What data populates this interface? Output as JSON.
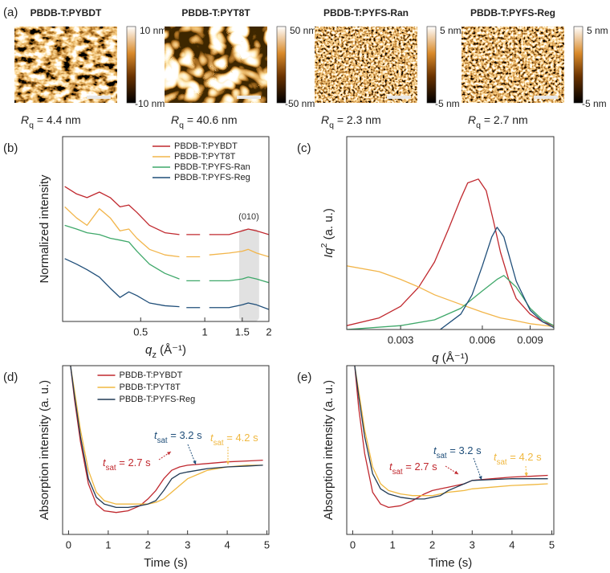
{
  "panel_a": {
    "panel_label": "(a)",
    "images": [
      {
        "title": "PBDB-T:PYBDT",
        "scale_max": "10 nm",
        "scale_min": "-10 nm",
        "rq": {
          "symbol": "R",
          "subscript": "q",
          "text": " = 4.4 nm"
        }
      },
      {
        "title": "PBDB-T:PYT8T",
        "scale_max": "50 nm",
        "scale_min": "-50 nm",
        "rq": {
          "symbol": "R",
          "subscript": "q",
          "text": " = 40.6 nm"
        }
      },
      {
        "title": "PBDB-T:PYFS-Ran",
        "scale_max": "5 nm",
        "scale_min": "-5 nm",
        "rq": {
          "symbol": "R",
          "subscript": "q",
          "text": " = 2.3 nm"
        }
      },
      {
        "title": "PBDB-T:PYFS-Reg",
        "scale_max": "5 nm",
        "scale_min": "-5 nm",
        "rq": {
          "symbol": "R",
          "subscript": "q",
          "text": " = 2.7 nm"
        }
      }
    ]
  },
  "chart_data": [
    {
      "type": "line",
      "panel_label": "(b)",
      "x_label": [
        {
          "text": "q",
          "style": "italic"
        },
        {
          "text": "z",
          "style": "sub"
        },
        {
          "text": " (Å⁻¹)"
        }
      ],
      "y_label": [
        {
          "text": "Normalized intensity"
        }
      ],
      "x_scale": "log",
      "xlim": [
        0.215,
        2.0
      ],
      "xticks": [
        0.5,
        1,
        1.5,
        2
      ],
      "ylim": [
        0,
        100
      ],
      "legend": "upper right",
      "highlight_x": [
        1.45,
        1.8
      ],
      "annotations": [
        {
          "parts": [
            {
              "text": "(010)"
            }
          ],
          "color": "#333333"
        }
      ],
      "series": [
        {
          "name": "PBDB-T:PYBDT",
          "color": "#c0282e",
          "x": [
            0.22,
            0.25,
            0.28,
            0.32,
            0.36,
            0.4,
            0.44,
            0.48,
            0.55,
            0.65,
            0.76,
            0.78,
            0.82,
            0.95,
            1.0,
            1.05,
            1.3,
            1.5,
            1.6,
            1.75,
            2.0
          ],
          "values": [
            73,
            69,
            67,
            70,
            67,
            62,
            63,
            59,
            52,
            48,
            47,
            null,
            47,
            47,
            null,
            47,
            47,
            49,
            50,
            49,
            47
          ]
        },
        {
          "name": "PBDB-T:PYT8T",
          "color": "#f2b54a",
          "x": [
            0.22,
            0.25,
            0.28,
            0.32,
            0.36,
            0.4,
            0.44,
            0.48,
            0.55,
            0.65,
            0.76,
            0.78,
            0.82,
            0.95,
            1.0,
            1.05,
            1.3,
            1.5,
            1.6,
            1.75,
            2.0
          ],
          "values": [
            62,
            56,
            52,
            61,
            56,
            49,
            50,
            45,
            39,
            36,
            35,
            null,
            35,
            35,
            null,
            36,
            37,
            38,
            39,
            37,
            35
          ]
        },
        {
          "name": "PBDB-T:PYFS-Ran",
          "color": "#3fa86a",
          "x": [
            0.22,
            0.25,
            0.28,
            0.32,
            0.36,
            0.4,
            0.44,
            0.48,
            0.55,
            0.65,
            0.76,
            0.78,
            0.82,
            0.95,
            1.0,
            1.05,
            1.3,
            1.5,
            1.6,
            1.75,
            2.0
          ],
          "values": [
            52,
            50,
            48,
            47,
            45,
            44,
            43,
            38,
            31,
            26,
            23,
            null,
            22,
            22,
            null,
            22,
            22,
            23,
            24,
            23,
            21
          ]
        },
        {
          "name": "PBDB-T:PYFS-Reg",
          "color": "#1f4e79",
          "x": [
            0.22,
            0.25,
            0.28,
            0.32,
            0.36,
            0.4,
            0.44,
            0.48,
            0.55,
            0.65,
            0.76,
            0.78,
            0.82,
            0.95,
            1.0,
            1.05,
            1.3,
            1.5,
            1.6,
            1.75,
            2.0
          ],
          "values": [
            34,
            31,
            28,
            24,
            18,
            13,
            16,
            14,
            10,
            8.5,
            8,
            null,
            7.5,
            7.5,
            null,
            7.5,
            7.5,
            9,
            10,
            9,
            6.5
          ]
        }
      ]
    },
    {
      "type": "line",
      "panel_label": "(c)",
      "x_label": [
        {
          "text": "q",
          "style": "italic"
        },
        {
          "text": " (Å⁻¹)"
        }
      ],
      "y_label": [
        {
          "text": "I",
          "style": "italic"
        },
        {
          "text": "q",
          "style": "italic"
        },
        {
          "text": "2",
          "style": "sup"
        },
        {
          "text": " (a. u.)"
        }
      ],
      "x_scale": "log",
      "xlim": [
        0.0019,
        0.011
      ],
      "xticks": [
        0.003,
        0.006,
        0.009
      ],
      "ylim": [
        0,
        100
      ],
      "series": [
        {
          "color": "#c0282e",
          "x": [
            0.0019,
            0.0025,
            0.003,
            0.0035,
            0.004,
            0.0045,
            0.005,
            0.0053,
            0.0058,
            0.0062,
            0.0066,
            0.007,
            0.0075,
            0.008,
            0.009,
            0.01,
            0.011
          ],
          "values": [
            2,
            6,
            12,
            22,
            35,
            52,
            68,
            76,
            78,
            72,
            56,
            40,
            26,
            16,
            8,
            4,
            2
          ]
        },
        {
          "color": "#f2b54a",
          "x": [
            0.0019,
            0.0025,
            0.003,
            0.0035,
            0.004,
            0.005,
            0.006,
            0.007,
            0.008,
            0.009,
            0.011
          ],
          "values": [
            33,
            30,
            26,
            22,
            18,
            13,
            9,
            6,
            4.5,
            3,
            1.5
          ]
        },
        {
          "color": "#3fa86a",
          "x": [
            0.0019,
            0.003,
            0.004,
            0.005,
            0.006,
            0.0068,
            0.0072,
            0.008,
            0.009,
            0.01,
            0.011
          ],
          "values": [
            0,
            2,
            5,
            11,
            20,
            26,
            28,
            22,
            11,
            5,
            2
          ]
        },
        {
          "color": "#1f4e79",
          "x": [
            0.0042,
            0.005,
            0.0055,
            0.006,
            0.0065,
            0.0068,
            0.0072,
            0.008,
            0.009,
            0.01,
            0.011
          ],
          "values": [
            0,
            8,
            18,
            33,
            48,
            53,
            48,
            25,
            10,
            4,
            1
          ]
        }
      ]
    },
    {
      "type": "line",
      "panel_label": "(d)",
      "x_label": [
        {
          "text": "Time (s)"
        }
      ],
      "y_label": [
        {
          "text": "Absorption intensity (a. u.)"
        }
      ],
      "x_scale": "linear",
      "xlim": [
        -0.15,
        5.05
      ],
      "xticks": [
        0,
        1,
        2,
        3,
        4,
        5
      ],
      "ylim": [
        0,
        100
      ],
      "legend": "upper center",
      "annotations": [
        {
          "parts": [
            {
              "text": "t",
              "style": "italic"
            },
            {
              "text": "sat",
              "style": "sub"
            },
            {
              "text": " = 2.7 s"
            }
          ],
          "color": "#c0282e"
        },
        {
          "parts": [
            {
              "text": "t",
              "style": "italic"
            },
            {
              "text": "sat",
              "style": "sub"
            },
            {
              "text": " = 3.2 s"
            }
          ],
          "color": "#1f4e79"
        },
        {
          "parts": [
            {
              "text": "t",
              "style": "italic"
            },
            {
              "text": "sat",
              "style": "sub"
            },
            {
              "text": " = 4.2 s"
            }
          ],
          "color": "#f0b840"
        }
      ],
      "series": [
        {
          "name": "PBDB-T:PYBDT",
          "color": "#c0282e",
          "x": [
            0.05,
            0.15,
            0.3,
            0.5,
            0.7,
            0.9,
            1.2,
            1.5,
            1.8,
            2.0,
            2.2,
            2.4,
            2.6,
            2.8,
            3.0,
            3.5,
            4.0,
            4.5,
            4.9
          ],
          "values": [
            100,
            80,
            55,
            30,
            18,
            14,
            13,
            14,
            17,
            21,
            26,
            33,
            38,
            40,
            41,
            42,
            43,
            43.5,
            44
          ]
        },
        {
          "name": "PBDB-T:PYT8T",
          "color": "#f0b840",
          "x": [
            0.05,
            0.15,
            0.3,
            0.5,
            0.7,
            0.9,
            1.2,
            1.5,
            1.8,
            2.0,
            2.2,
            2.4,
            2.6,
            2.8,
            3.0,
            3.5,
            4.0,
            4.5,
            4.9
          ],
          "values": [
            100,
            85,
            62,
            38,
            25,
            20,
            18,
            18,
            18,
            18,
            19,
            21,
            25,
            29,
            33,
            38,
            40,
            41,
            41
          ]
        },
        {
          "name": "PBDB-T:PYFS-Reg",
          "color": "#203a55",
          "x": [
            0.05,
            0.15,
            0.3,
            0.5,
            0.7,
            0.9,
            1.2,
            1.5,
            1.8,
            2.0,
            2.2,
            2.4,
            2.6,
            2.8,
            3.0,
            3.5,
            4.0,
            4.5,
            4.9
          ],
          "values": [
            100,
            82,
            58,
            33,
            22,
            18,
            16,
            16,
            17,
            18,
            20,
            26,
            33,
            36,
            37,
            39,
            40,
            40.5,
            41
          ]
        }
      ]
    },
    {
      "type": "line",
      "panel_label": "(e)",
      "x_label": [
        {
          "text": "Time (s)"
        }
      ],
      "y_label": [
        {
          "text": "Absorption intensity (a. u.)"
        }
      ],
      "x_scale": "linear",
      "xlim": [
        -0.15,
        5.05
      ],
      "xticks": [
        0,
        1,
        2,
        3,
        4,
        5
      ],
      "ylim": [
        0,
        100
      ],
      "annotations": [
        {
          "parts": [
            {
              "text": "t",
              "style": "italic"
            },
            {
              "text": "sat",
              "style": "sub"
            },
            {
              "text": " = 2.7 s"
            }
          ],
          "color": "#c0282e"
        },
        {
          "parts": [
            {
              "text": "t",
              "style": "italic"
            },
            {
              "text": "sat",
              "style": "sub"
            },
            {
              "text": " = 3.2 s"
            }
          ],
          "color": "#1f4e79"
        },
        {
          "parts": [
            {
              "text": "t",
              "style": "italic"
            },
            {
              "text": "sat",
              "style": "sub"
            },
            {
              "text": " = 4.2 s"
            }
          ],
          "color": "#f0b840"
        }
      ],
      "series": [
        {
          "color": "#c0282e",
          "x": [
            0.05,
            0.15,
            0.3,
            0.5,
            0.7,
            0.9,
            1.2,
            1.5,
            1.8,
            2.0,
            2.2,
            2.4,
            2.6,
            2.8,
            3.0,
            3.5,
            4.0,
            4.5,
            4.9
          ],
          "values": [
            100,
            75,
            48,
            25,
            18,
            16,
            17,
            20,
            24,
            26,
            27,
            28,
            29,
            30,
            32,
            33,
            34,
            34.5,
            35
          ]
        },
        {
          "color": "#f0b840",
          "x": [
            0.05,
            0.15,
            0.3,
            0.5,
            0.7,
            0.9,
            1.2,
            1.5,
            1.8,
            2.0,
            2.2,
            2.4,
            2.6,
            2.8,
            3.0,
            3.5,
            4.0,
            4.5,
            4.9
          ],
          "values": [
            100,
            85,
            62,
            40,
            30,
            26,
            24,
            23,
            23,
            23,
            24,
            25,
            25.5,
            26,
            27,
            28,
            29,
            29.5,
            30
          ]
        },
        {
          "color": "#203a55",
          "x": [
            0.05,
            0.15,
            0.3,
            0.5,
            0.7,
            0.9,
            1.2,
            1.5,
            1.8,
            2.0,
            2.2,
            2.4,
            2.6,
            2.8,
            3.0,
            3.5,
            4.0,
            4.5,
            4.9
          ],
          "values": [
            100,
            82,
            58,
            36,
            27,
            24,
            22,
            21,
            21,
            22,
            23,
            26,
            28,
            30,
            32,
            32.5,
            33,
            33,
            33
          ]
        }
      ]
    }
  ]
}
